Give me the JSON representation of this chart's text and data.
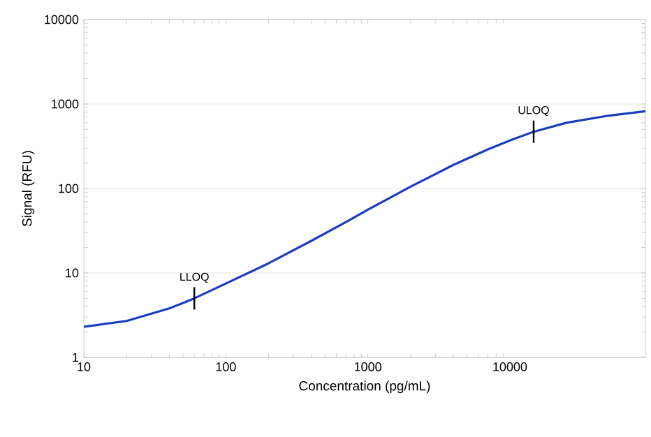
{
  "chart_data": {
    "type": "line",
    "xlabel": "Concentration (pg/mL)",
    "ylabel": "Signal (RFU)",
    "log": "xy",
    "grid": "y",
    "xlim": [
      10,
      90000
    ],
    "ylim": [
      1,
      10000
    ],
    "xticks": [
      10,
      100,
      1000,
      10000
    ],
    "yticks": [
      1,
      10,
      100,
      1000,
      10000
    ],
    "x": [
      10,
      20,
      40,
      60,
      100,
      200,
      400,
      700,
      1000,
      2000,
      4000,
      7000,
      10000,
      14700,
      25000,
      50000,
      90000
    ],
    "series": [
      {
        "color": "#1a3cc0",
        "values": [
          2.3,
          2.7,
          3.8,
          5.0,
          7.5,
          13,
          24,
          40,
          56,
          105,
          190,
          290,
          370,
          470,
          600,
          730,
          820
        ]
      }
    ],
    "annotations": [
      {
        "text": "LLOQ",
        "x": 60,
        "y": 5.0
      },
      {
        "text": "ULOQ",
        "x": 14700,
        "y": 470
      }
    ]
  }
}
